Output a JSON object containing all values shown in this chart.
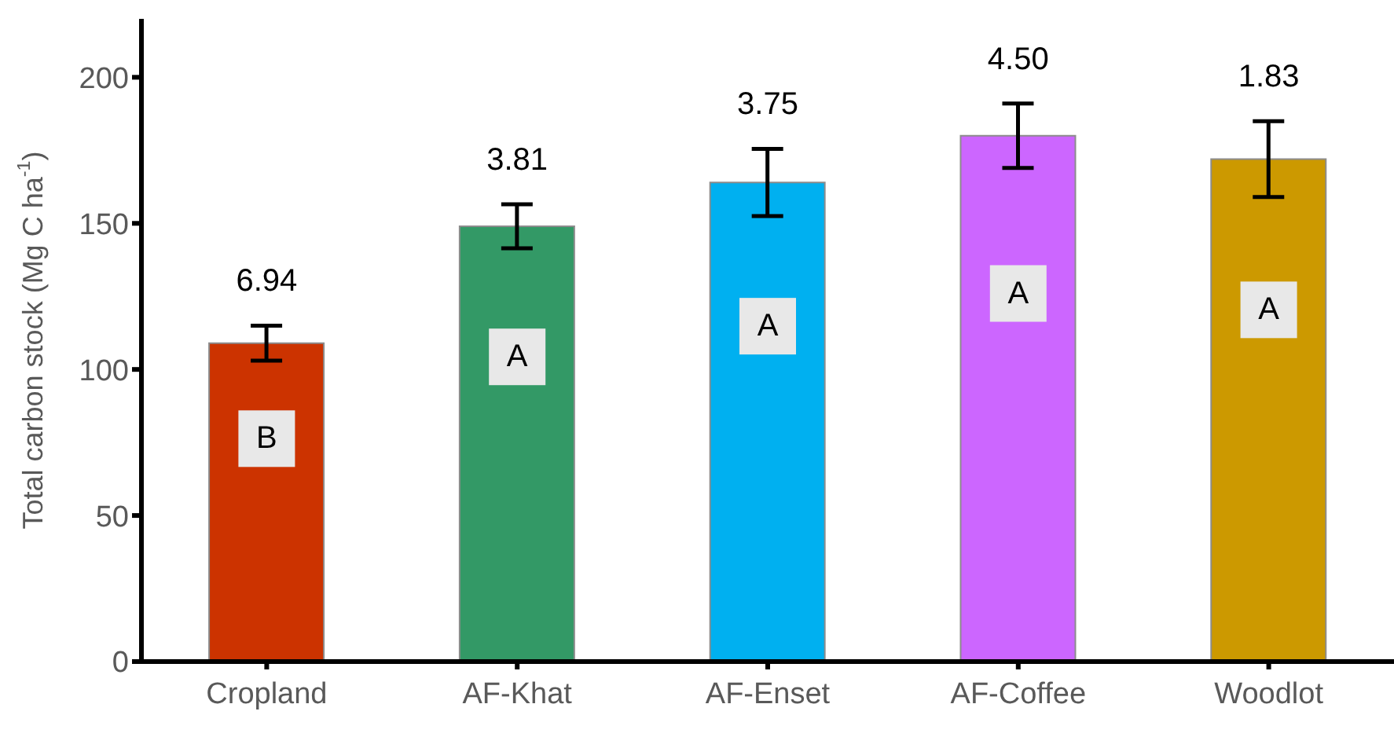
{
  "chart_data": {
    "type": "bar",
    "ylabel": "Total carbon stock (Mg C ha$^{-1}$)",
    "categories": [
      "Cropland",
      "AF-Khat",
      "AF-Enset",
      "AF-Coffee",
      "Woodlot"
    ],
    "values": [
      109,
      149,
      164,
      180,
      172
    ],
    "errors": [
      6,
      7.5,
      11.5,
      11,
      13
    ],
    "colors": [
      "#cc3300",
      "#339966",
      "#00b0f0",
      "#cc66ff",
      "#cc9900"
    ],
    "ylim": [
      0,
      220
    ],
    "yticks": [
      0,
      50,
      100,
      150,
      200
    ],
    "grid": false,
    "annotations": [
      "6.94",
      "3.81",
      "3.75",
      "4.50",
      "1.83",
      "B",
      "A",
      "A",
      "A",
      "A"
    ]
  }
}
